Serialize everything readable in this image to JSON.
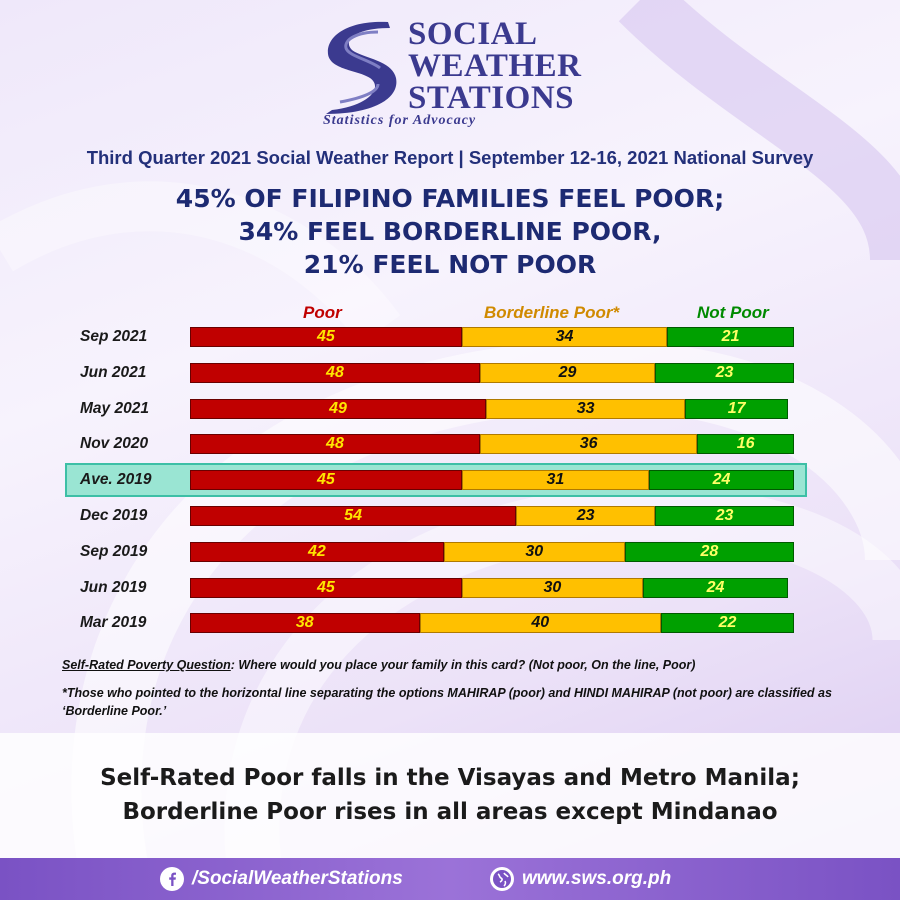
{
  "logo": {
    "line1": "SOCIAL",
    "line2": "WEATHER",
    "line3": "STATIONS",
    "tagline": "Statistics for Advocacy"
  },
  "subtitle": "Third Quarter 2021 Social Weather Report | September 12-16, 2021 National Survey",
  "headline": {
    "line1": "45% OF FILIPINO FAMILIES FEEL POOR;",
    "line2": "34% FEEL BORDERLINE POOR,",
    "line3": "21% FEEL NOT POOR"
  },
  "colors": {
    "poor": "#c00000",
    "borderline": "#ffc000",
    "not_poor": "#00a000",
    "poor_label": "#c00000",
    "borderline_label": "#d08a00",
    "not_poor_label": "#008a00",
    "value_on_red": "#ffe600",
    "value_on_yellow": "#111111",
    "value_on_green": "#ffff66"
  },
  "chart_data": {
    "type": "bar",
    "orientation": "horizontal-stacked",
    "categories": [
      "Sep 2021",
      "Jun 2021",
      "May 2021",
      "Nov 2020",
      "Ave. 2019",
      "Dec 2019",
      "Sep 2019",
      "Jun 2019",
      "Mar 2019"
    ],
    "series": [
      {
        "name": "Poor",
        "values": [
          45,
          48,
          49,
          48,
          45,
          54,
          42,
          45,
          38
        ]
      },
      {
        "name": "Borderline Poor*",
        "values": [
          34,
          29,
          33,
          36,
          31,
          23,
          30,
          30,
          40
        ]
      },
      {
        "name": "Not Poor",
        "values": [
          21,
          23,
          17,
          16,
          24,
          23,
          28,
          24,
          22
        ]
      }
    ],
    "highlighted_category": "Ave. 2019",
    "legend_position": "top",
    "xlim": [
      0,
      100
    ],
    "grid": false
  },
  "question": {
    "label": "Self-Rated Poverty Question",
    "text": ":  Where would you place your family in this card?  (Not poor, On the line, Poor)"
  },
  "footnote": "*Those who pointed to the horizontal line separating the options MAHIRAP (poor) and HINDI MAHIRAP (not poor) are classified as ‘Borderline Poor.’",
  "bottom": {
    "line1": "Self-Rated Poor falls in the Visayas and Metro Manila;",
    "line2": "Borderline Poor rises in all areas except Mindanao"
  },
  "footer": {
    "facebook": "/SocialWeatherStations",
    "facebook_icon": "facebook-icon",
    "website": "www.sws.org.ph",
    "website_icon": "globe-icon"
  }
}
